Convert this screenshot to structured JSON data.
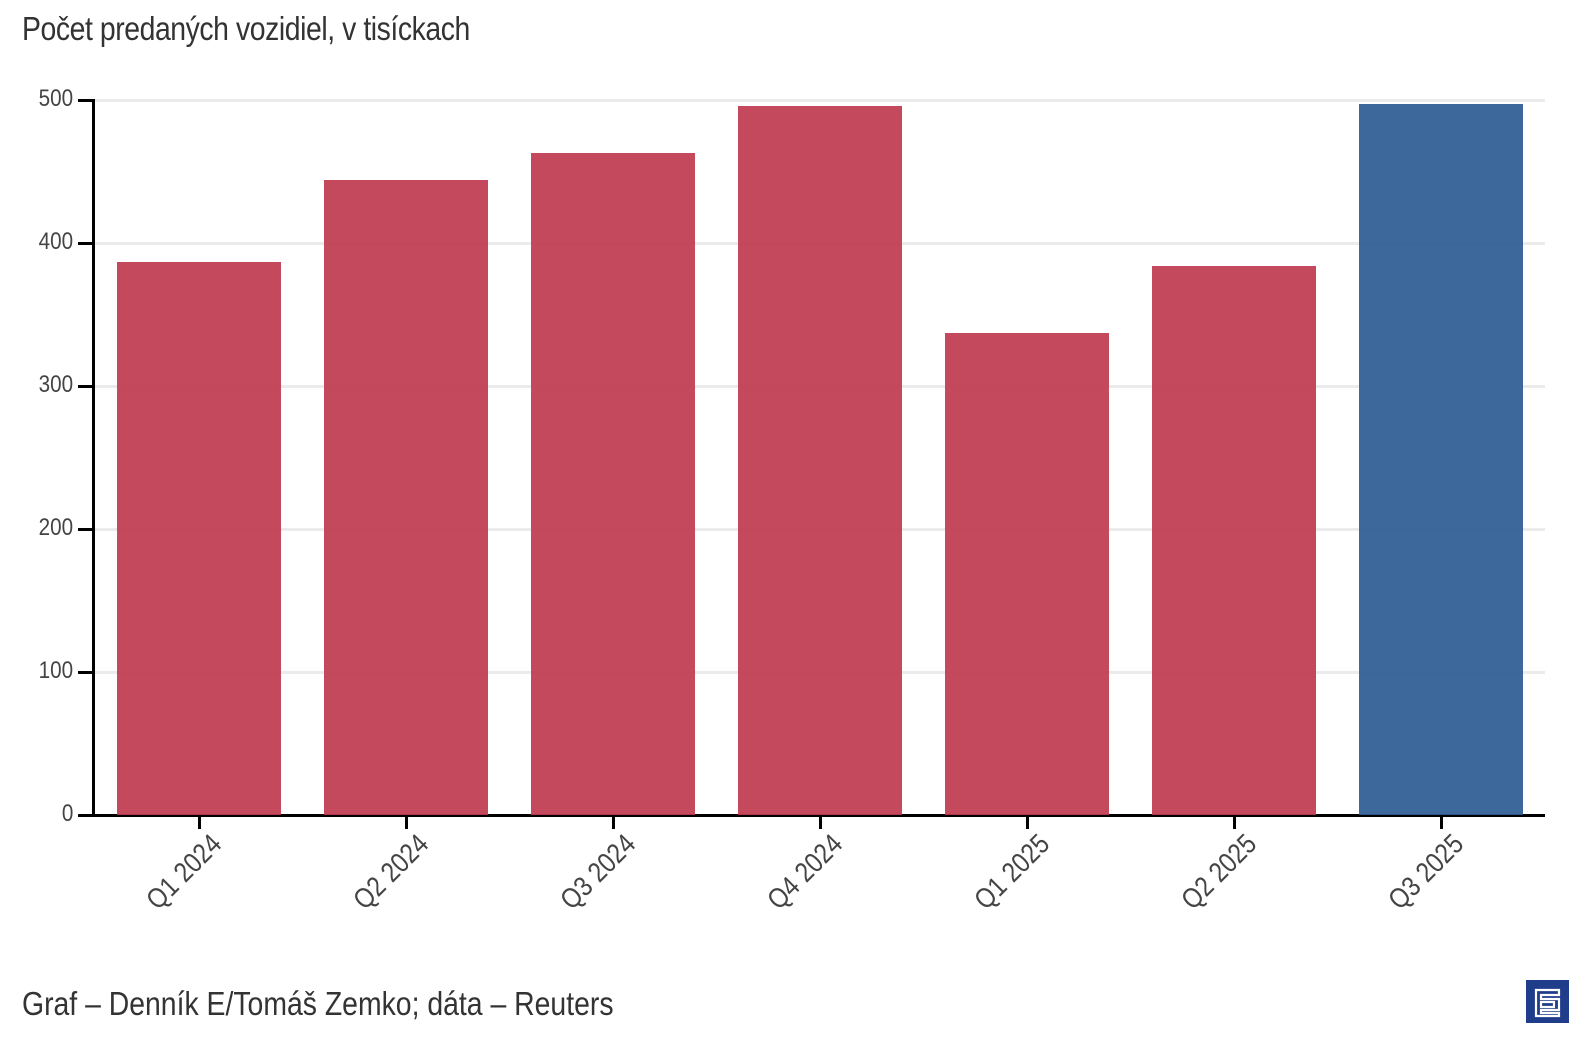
{
  "header": {
    "subtitle": "Počet predaných vozidiel, v tisíckach"
  },
  "footer": {
    "source": "Graf – Denník E/Tomáš Zemko; dáta – Reuters",
    "logo": "denník-e-logo"
  },
  "colors": {
    "primary_bar": "#c0394e",
    "highlight_bar": "#2c5b94",
    "logo": "#1f3d8a",
    "grid": "#ebebeb",
    "axis": "#000000"
  },
  "chart_data": {
    "type": "bar",
    "title": "",
    "subtitle": "Počet predaných vozidiel, v tisíckach",
    "xlabel": "",
    "ylabel": "",
    "categories": [
      "Q1 2024",
      "Q2 2024",
      "Q3 2024",
      "Q4 2024",
      "Q1 2025",
      "Q2 2025",
      "Q3 2025"
    ],
    "values": [
      387,
      444,
      463,
      496,
      337,
      384,
      497
    ],
    "highlight_index": 6,
    "ylim": [
      0,
      500
    ],
    "yticks": [
      0,
      100,
      200,
      300,
      400,
      500
    ],
    "grid": true,
    "legend": "none",
    "source": "Graf – Denník E/Tomáš Zemko; dáta – Reuters"
  }
}
